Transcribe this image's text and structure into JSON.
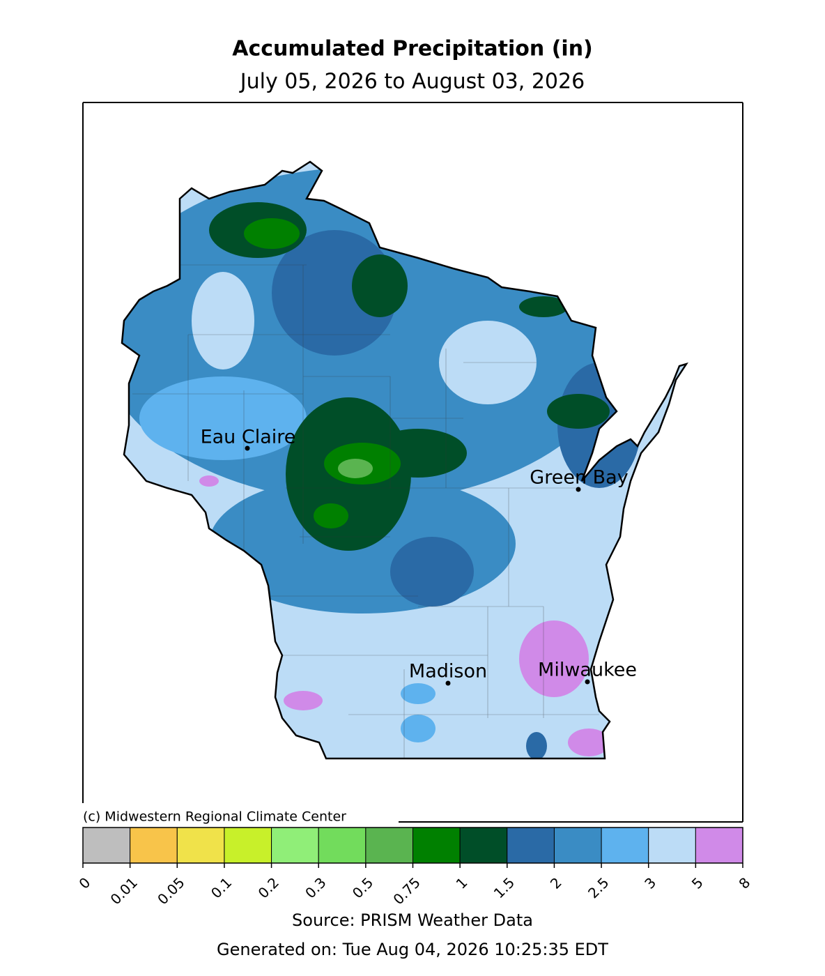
{
  "title": "Accumulated Precipitation (in)",
  "subtitle": "July 05, 2026 to August 03, 2026",
  "cities": [
    "Eau Claire",
    "Green Bay",
    "Madison",
    "Milwaukee"
  ],
  "copyright": "(c) Midwestern Regional Climate Center",
  "legend": {
    "ticks": [
      0,
      0.01,
      0.05,
      0.1,
      0.2,
      0.3,
      0.5,
      0.75,
      1,
      1.5,
      2,
      2.5,
      3,
      5,
      8
    ],
    "colors": [
      "#bebebe",
      "#f8c44a",
      "#f0e24a",
      "#c8f02a",
      "#90ee78",
      "#72dc5c",
      "#5ab450",
      "#008000",
      "#004e28",
      "#2a6aa6",
      "#3a8cc4",
      "#5eb2ee",
      "#bcdcf6",
      "#d08ae8"
    ]
  },
  "source": "Source: PRISM Weather Data",
  "generated": "Generated on: Tue Aug 04, 2026 10:25:35 EDT"
}
